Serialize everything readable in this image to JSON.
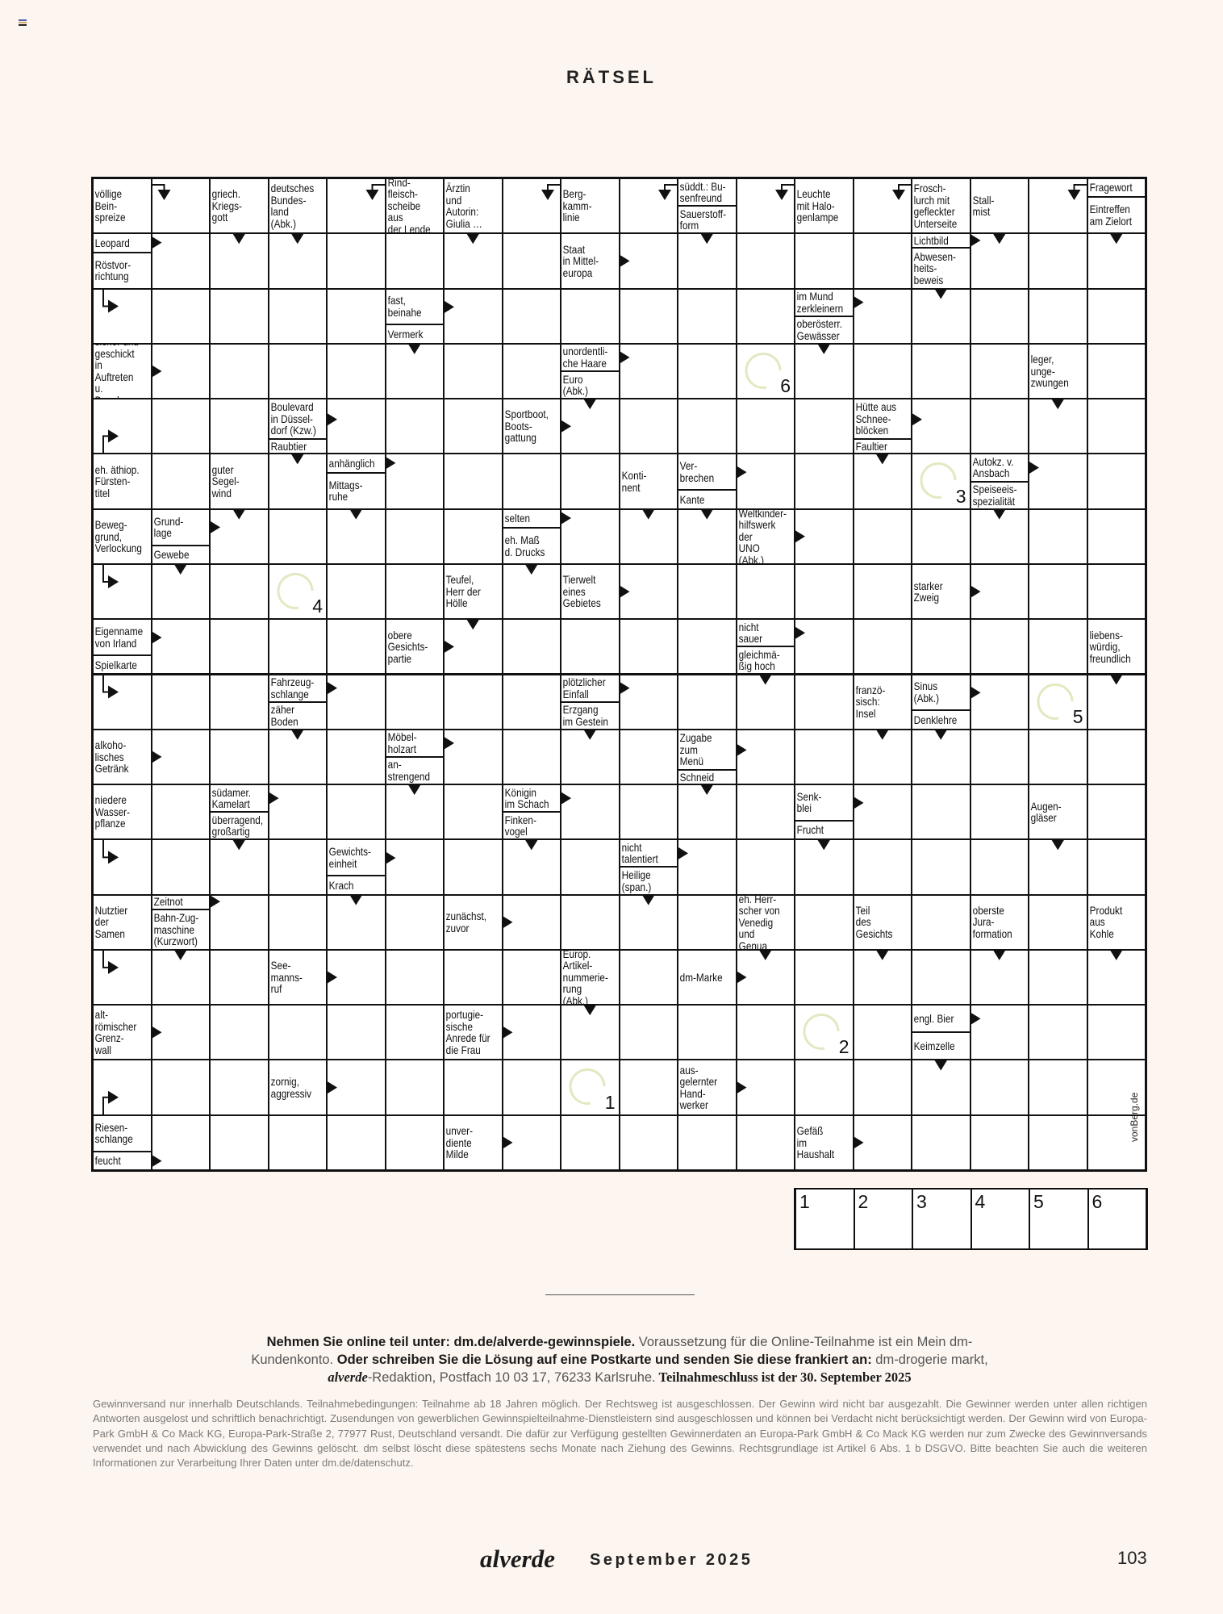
{
  "header": {
    "title": "RÄTSEL",
    "corner_icon": "magazine-flag-icon"
  },
  "puzzle": {
    "rows": 18,
    "cols": 18,
    "clue_cells": [
      {
        "r": 0,
        "c": 0,
        "clues": [
          {
            "text": "völlige\nBein-\nspreize",
            "arrow": "right-down"
          }
        ]
      },
      {
        "r": 0,
        "c": 2,
        "clues": [
          {
            "text": "griech.\nKriegs-\ngott",
            "arrow": "down"
          }
        ]
      },
      {
        "r": 0,
        "c": 3,
        "clues": [
          {
            "text": "deutsches\nBundes-\nland\n(Abk.)",
            "arrow": "down"
          }
        ]
      },
      {
        "r": 0,
        "c": 5,
        "clues": [
          {
            "text": "Rind-\nfleisch-\nscheibe aus\nder Lende",
            "arrow": "left-down"
          }
        ]
      },
      {
        "r": 0,
        "c": 6,
        "clues": [
          {
            "text": "Ärztin\nund\nAutorin:\nGiulia …",
            "arrow": "down"
          }
        ]
      },
      {
        "r": 0,
        "c": 8,
        "clues": [
          {
            "text": "Berg-\nkamm-\nlinie",
            "arrow": "left-down"
          }
        ]
      },
      {
        "r": 0,
        "c": 10,
        "clues": [
          {
            "text": "süddt.: Bu-\nsenfreund",
            "arrow": "left-down"
          },
          {
            "text": "Sauerstoff-\nform",
            "arrow": "down"
          }
        ]
      },
      {
        "r": 0,
        "c": 12,
        "clues": [
          {
            "text": "Leuchte\nmit Halo-\ngenlampe",
            "arrow": "left-down"
          }
        ]
      },
      {
        "r": 0,
        "c": 14,
        "clues": [
          {
            "text": "Frosch-\nlurch mit\ngefleckter\nUnterseite",
            "arrow": "left-down"
          }
        ]
      },
      {
        "r": 0,
        "c": 15,
        "clues": [
          {
            "text": "Stall-\nmist",
            "arrow": "down"
          }
        ]
      },
      {
        "r": 0,
        "c": 17,
        "clues": [
          {
            "text": "Fragewort",
            "arrow": "left-down"
          },
          {
            "text": "Eintreffen\nam Zielort",
            "arrow": "down"
          }
        ]
      },
      {
        "r": 1,
        "c": 0,
        "clues": [
          {
            "text": "Leopard",
            "arrow": "right"
          },
          {
            "text": "Röstvor-\nrichtung",
            "arrow": "down-right"
          }
        ]
      },
      {
        "r": 1,
        "c": 8,
        "clues": [
          {
            "text": "Staat\nin Mittel-\neuropa",
            "arrow": "right"
          }
        ]
      },
      {
        "r": 1,
        "c": 14,
        "clues": [
          {
            "text": "Lichtbild",
            "arrow": "right"
          },
          {
            "text": "Abwesen-\nheits-\nbeweis",
            "arrow": "down"
          }
        ]
      },
      {
        "r": 2,
        "c": 5,
        "clues": [
          {
            "text": "fast,\nbeinahe",
            "arrow": "right"
          },
          {
            "text": "Vermerk",
            "arrow": "down"
          }
        ]
      },
      {
        "r": 2,
        "c": 12,
        "clues": [
          {
            "text": "im Mund\nzerkleinern",
            "arrow": "right"
          },
          {
            "text": "oberösterr.\nGewässer",
            "arrow": "down"
          }
        ]
      },
      {
        "r": 3,
        "c": 0,
        "clues": [
          {
            "text": "sicher und\ngeschickt in\nAuftreten u.\nBenehmen",
            "arrow": "right"
          }
        ]
      },
      {
        "r": 3,
        "c": 8,
        "clues": [
          {
            "text": "unordentli-\nche Haare",
            "arrow": "right"
          },
          {
            "text": "Euro\n(Abk.)",
            "arrow": "down"
          }
        ]
      },
      {
        "r": 3,
        "c": 16,
        "clues": [
          {
            "text": "leger,\nunge-\nzwungen",
            "arrow": "down"
          }
        ]
      },
      {
        "r": 4,
        "c": 3,
        "clues": [
          {
            "text": "Boulevard\nin Düssel-\ndorf (Kzw.)",
            "arrow": "right"
          },
          {
            "text": "Raubtier",
            "arrow": "down"
          }
        ]
      },
      {
        "r": 4,
        "c": 7,
        "clues": [
          {
            "text": "Sportboot,\nBoots-\ngattung",
            "arrow": "right"
          }
        ]
      },
      {
        "r": 4,
        "c": 13,
        "clues": [
          {
            "text": "Hütte aus\nSchnee-\nblöcken",
            "arrow": "right"
          },
          {
            "text": "Faultier",
            "arrow": "down"
          }
        ]
      },
      {
        "r": 5,
        "c": 0,
        "clues": [
          {
            "text": "eh. äthiop.\nFürsten-\ntitel",
            "arrow": "up-right"
          }
        ]
      },
      {
        "r": 5,
        "c": 2,
        "clues": [
          {
            "text": "guter\nSegel-\nwind",
            "arrow": "down"
          }
        ]
      },
      {
        "r": 5,
        "c": 4,
        "clues": [
          {
            "text": "anhänglich",
            "arrow": "right"
          },
          {
            "text": "Mittags-\nruhe",
            "arrow": "down"
          }
        ]
      },
      {
        "r": 5,
        "c": 9,
        "clues": [
          {
            "text": "Konti-\nnent",
            "arrow": "down"
          }
        ]
      },
      {
        "r": 5,
        "c": 10,
        "clues": [
          {
            "text": "Ver-\nbrechen",
            "arrow": "right"
          },
          {
            "text": "Kante",
            "arrow": "down"
          }
        ]
      },
      {
        "r": 5,
        "c": 15,
        "clues": [
          {
            "text": "Autokz. v.\nAnsbach",
            "arrow": "right"
          },
          {
            "text": "Speiseeis-\nspezialität",
            "arrow": "down"
          }
        ]
      },
      {
        "r": 6,
        "c": 0,
        "clues": [
          {
            "text": "Beweg-\ngrund,\nVerlockung",
            "arrow": "down-right"
          }
        ]
      },
      {
        "r": 6,
        "c": 1,
        "clues": [
          {
            "text": "Grund-\nlage",
            "arrow": "right"
          },
          {
            "text": "Gewebe",
            "arrow": "down"
          }
        ]
      },
      {
        "r": 6,
        "c": 7,
        "clues": [
          {
            "text": "selten",
            "arrow": "right"
          },
          {
            "text": "eh. Maß\nd. Drucks",
            "arrow": "down"
          }
        ]
      },
      {
        "r": 6,
        "c": 11,
        "clues": [
          {
            "text": "Weltkinder-\nhilfswerk der\nUNO (Abk.)",
            "arrow": "right"
          }
        ]
      },
      {
        "r": 7,
        "c": 6,
        "clues": [
          {
            "text": "Teufel,\nHerr der\nHölle",
            "arrow": "down"
          }
        ]
      },
      {
        "r": 7,
        "c": 8,
        "clues": [
          {
            "text": "Tierwelt\neines\nGebietes",
            "arrow": "right"
          }
        ]
      },
      {
        "r": 7,
        "c": 14,
        "clues": [
          {
            "text": "starker\nZweig",
            "arrow": "right"
          }
        ]
      },
      {
        "r": 8,
        "c": 0,
        "clues": [
          {
            "text": "Eigenname\nvon Irland",
            "arrow": "right"
          },
          {
            "text": "Spielkarte",
            "arrow": "down-right"
          }
        ]
      },
      {
        "r": 8,
        "c": 5,
        "clues": [
          {
            "text": "obere\nGesichts-\npartie",
            "arrow": "right"
          }
        ]
      },
      {
        "r": 8,
        "c": 11,
        "clues": [
          {
            "text": "nicht\nsauer",
            "arrow": "right"
          },
          {
            "text": "gleichmä-\nßig hoch",
            "arrow": "down"
          }
        ]
      },
      {
        "r": 8,
        "c": 17,
        "clues": [
          {
            "text": "liebens-\nwürdig,\nfreundlich",
            "arrow": "down"
          }
        ]
      },
      {
        "r": 9,
        "c": 3,
        "clues": [
          {
            "text": "Fahrzeug-\nschlange",
            "arrow": "right"
          },
          {
            "text": "zäher\nBoden",
            "arrow": "down"
          }
        ]
      },
      {
        "r": 9,
        "c": 8,
        "clues": [
          {
            "text": "plötzlicher\nEinfall",
            "arrow": "right"
          },
          {
            "text": "Erzgang\nim Gestein",
            "arrow": "down"
          }
        ]
      },
      {
        "r": 9,
        "c": 13,
        "clues": [
          {
            "text": "franzö-\nsisch:\nInsel",
            "arrow": "down"
          }
        ]
      },
      {
        "r": 9,
        "c": 14,
        "clues": [
          {
            "text": "Sinus\n(Abk.)",
            "arrow": "right"
          },
          {
            "text": "Denklehre",
            "arrow": "down"
          }
        ]
      },
      {
        "r": 10,
        "c": 0,
        "clues": [
          {
            "text": "alkoho-\nlisches\nGetränk",
            "arrow": "right"
          }
        ]
      },
      {
        "r": 10,
        "c": 5,
        "clues": [
          {
            "text": "Möbel-\nholzart",
            "arrow": "right"
          },
          {
            "text": "an-\nstrengend",
            "arrow": "down"
          }
        ]
      },
      {
        "r": 10,
        "c": 10,
        "clues": [
          {
            "text": "Zugabe\nzum\nMenü",
            "arrow": "right"
          },
          {
            "text": "Schneid",
            "arrow": "down"
          }
        ]
      },
      {
        "r": 11,
        "c": 0,
        "clues": [
          {
            "text": "niedere\nWasser-\npflanze",
            "arrow": "down-right"
          }
        ]
      },
      {
        "r": 11,
        "c": 2,
        "clues": [
          {
            "text": "südamer.\nKamelart",
            "arrow": "right"
          },
          {
            "text": "überragend,\ngroßartig",
            "arrow": "down"
          }
        ]
      },
      {
        "r": 11,
        "c": 7,
        "clues": [
          {
            "text": "Königin\nim Schach",
            "arrow": "right"
          },
          {
            "text": "Finken-\nvogel",
            "arrow": "down"
          }
        ]
      },
      {
        "r": 11,
        "c": 12,
        "clues": [
          {
            "text": "Senk-\nblei",
            "arrow": "right"
          },
          {
            "text": "Frucht",
            "arrow": "down"
          }
        ]
      },
      {
        "r": 11,
        "c": 16,
        "clues": [
          {
            "text": "Augen-\ngläser",
            "arrow": "down"
          }
        ]
      },
      {
        "r": 12,
        "c": 4,
        "clues": [
          {
            "text": "Gewichts-\neinheit",
            "arrow": "right"
          },
          {
            "text": "Krach",
            "arrow": "down"
          }
        ]
      },
      {
        "r": 12,
        "c": 9,
        "clues": [
          {
            "text": "nicht\ntalentiert",
            "arrow": "right"
          },
          {
            "text": "Heilige\n(span.)",
            "arrow": "down"
          }
        ]
      },
      {
        "r": 13,
        "c": 0,
        "clues": [
          {
            "text": "Nutztier\nder\nSamen",
            "arrow": "down-right"
          }
        ]
      },
      {
        "r": 13,
        "c": 1,
        "clues": [
          {
            "text": "Zeitnot",
            "arrow": "right"
          },
          {
            "text": "Bahn-Zug-\nmaschine\n(Kurzwort)",
            "arrow": "down"
          }
        ]
      },
      {
        "r": 13,
        "c": 6,
        "clues": [
          {
            "text": "zunächst,\nzuvor",
            "arrow": "right"
          }
        ]
      },
      {
        "r": 13,
        "c": 11,
        "clues": [
          {
            "text": "eh. Herr-\nscher von\nVenedig\nund Genua",
            "arrow": "down"
          }
        ]
      },
      {
        "r": 13,
        "c": 13,
        "clues": [
          {
            "text": "Teil\ndes\nGesichts",
            "arrow": "down"
          }
        ]
      },
      {
        "r": 13,
        "c": 15,
        "clues": [
          {
            "text": "oberste\nJura-\nformation",
            "arrow": "down"
          }
        ]
      },
      {
        "r": 13,
        "c": 17,
        "clues": [
          {
            "text": "Produkt\naus\nKohle",
            "arrow": "down"
          }
        ]
      },
      {
        "r": 14,
        "c": 3,
        "clues": [
          {
            "text": "See-\nmanns-\nruf",
            "arrow": "right"
          }
        ]
      },
      {
        "r": 14,
        "c": 8,
        "clues": [
          {
            "text": "Europ.\nArtikel-\nnummerie-\nrung (Abk.)",
            "arrow": "down"
          }
        ]
      },
      {
        "r": 14,
        "c": 10,
        "clues": [
          {
            "text": "dm-Marke",
            "arrow": "right"
          }
        ]
      },
      {
        "r": 15,
        "c": 0,
        "clues": [
          {
            "text": "alt-\nrömischer\nGrenz-\nwall",
            "arrow": "right"
          }
        ]
      },
      {
        "r": 15,
        "c": 6,
        "clues": [
          {
            "text": "portugie-\nsische\nAnrede für\ndie Frau",
            "arrow": "right"
          }
        ]
      },
      {
        "r": 15,
        "c": 14,
        "clues": [
          {
            "text": "engl. Bier",
            "arrow": "right"
          },
          {
            "text": "Keimzelle",
            "arrow": "down"
          }
        ]
      },
      {
        "r": 16,
        "c": 3,
        "clues": [
          {
            "text": "zornig,\naggressiv",
            "arrow": "right"
          }
        ]
      },
      {
        "r": 16,
        "c": 10,
        "clues": [
          {
            "text": "aus-\ngelernter\nHand-\nwerker",
            "arrow": "right"
          }
        ]
      },
      {
        "r": 17,
        "c": 0,
        "clues": [
          {
            "text": "Riesen-\nschlange",
            "arrow": "up-right"
          },
          {
            "text": "feucht",
            "arrow": "right"
          }
        ]
      },
      {
        "r": 17,
        "c": 6,
        "clues": [
          {
            "text": "unver-\ndiente\nMilde",
            "arrow": "right"
          }
        ]
      },
      {
        "r": 17,
        "c": 12,
        "clues": [
          {
            "text": "Gefäß\nim\nHaushalt",
            "arrow": "right"
          }
        ]
      }
    ],
    "solution_circles": [
      {
        "r": 16,
        "c": 8,
        "n": "1"
      },
      {
        "r": 15,
        "c": 12,
        "n": "2"
      },
      {
        "r": 5,
        "c": 14,
        "n": "3"
      },
      {
        "r": 7,
        "c": 3,
        "n": "4"
      },
      {
        "r": 9,
        "c": 16,
        "n": "5"
      },
      {
        "r": 3,
        "c": 11,
        "n": "6"
      }
    ],
    "circle_color": "#e4e8c2",
    "watermark": "vonBerg.de"
  },
  "solution_boxes": [
    "1",
    "2",
    "3",
    "4",
    "5",
    "6"
  ],
  "entry": {
    "bold1": "Nehmen Sie online teil unter: dm.de/alverde-gewinnspiele.",
    "text1": " Voraussetzung für die Online-Teilnahme ist ein Mein dm-Kundenkonto.",
    "bold2": " Oder schreiben Sie die Lösung auf eine Postkarte und senden Sie diese frankiert an:",
    "text2": " dm-drogerie markt, ",
    "brand": "alverde",
    "text3": "-Redaktion, Postfach 10 03 17, 76233 Karlsruhe.",
    "deadline": " Teilnahmeschluss ist der 30. September 2025"
  },
  "legal": "Gewinnversand nur innerhalb Deutschlands. Teilnahmebedingungen: Teilnahme ab 18 Jahren möglich. Der Rechtsweg ist ausgeschlossen. Der Gewinn wird nicht bar ausgezahlt. Die Gewinner werden unter allen richtigen Antworten ausgelost und schriftlich benachrichtigt. Zusendungen von gewerblichen Gewinnspielteilnahme-Dienstleistern sind ausgeschlossen und können bei Verdacht nicht berücksichtigt werden. Der Gewinn wird von Europa-Park GmbH & Co Mack KG, Europa-Park-Straße 2, 77977 Rust, Deutschland versandt. Die dafür zur Verfügung gestellten Gewinnerdaten an Europa-Park GmbH & Co Mack KG werden nur zum Zwecke des Gewinnversands verwendet und nach Abwicklung des Gewinns gelöscht. dm selbst löscht diese spätestens sechs Monate nach Ziehung des Gewinns. Rechtsgrundlage ist Artikel 6 Abs. 1 b DSGVO. Bitte beachten Sie auch die weiteren Informationen zur Verarbeitung Ihrer Daten unter dm.de/datenschutz.",
  "footer": {
    "brand": "alverde",
    "issue": "September 2025",
    "page": "103"
  }
}
